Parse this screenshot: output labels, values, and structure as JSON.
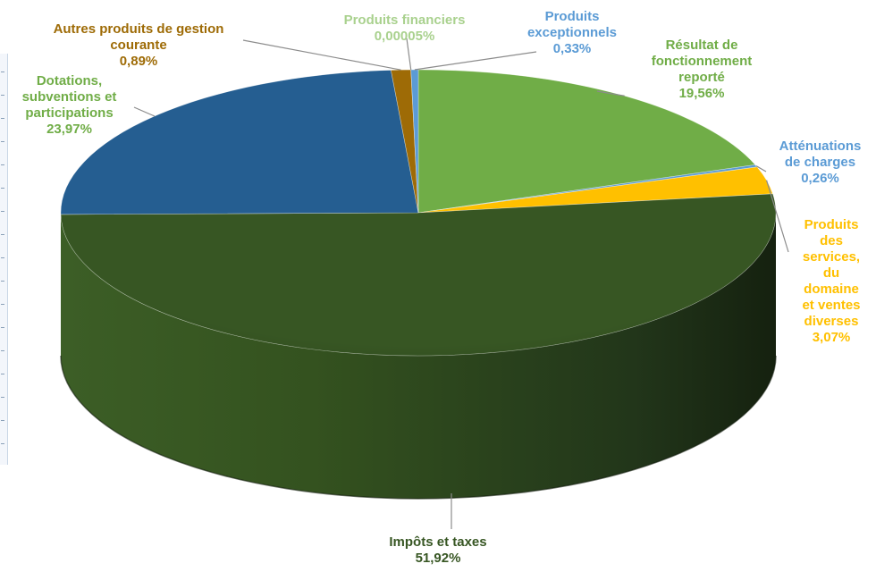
{
  "chart_data": {
    "type": "pie",
    "style": "3d",
    "slices": [
      {
        "name": "Résultat de fonctionnement reporté",
        "value": 19.56,
        "value_label": "19,56%",
        "color": "#70ad47"
      },
      {
        "name": "Atténuations de charges",
        "value": 0.26,
        "value_label": "0,26%",
        "color": "#5b9bd5"
      },
      {
        "name": "Produits des services, du domaine et ventes diverses",
        "value": 3.07,
        "value_label": "3,07%",
        "color": "#ffc000"
      },
      {
        "name": "Impôts et taxes",
        "value": 51.92,
        "value_label": "51,92%",
        "color": "#375623"
      },
      {
        "name": "Dotations, subventions et participations",
        "value": 23.97,
        "value_label": "23,97%",
        "color": "#255e91"
      },
      {
        "name": "Autres produits de gestion courante",
        "value": 0.89,
        "value_label": "0,89%",
        "color": "#9e6b06"
      },
      {
        "name": "Produits financiers",
        "value": 5e-05,
        "value_label": "0,00005%",
        "color": "#70ad47"
      },
      {
        "name": "Produits exceptionnels",
        "value": 0.33,
        "value_label": "0,33%",
        "color": "#5b9bd5"
      }
    ]
  },
  "labels": {
    "resultat": [
      "Résultat de",
      "fonctionnement",
      "reporté",
      "19,56%"
    ],
    "attenuations": [
      "Atténuations",
      "de charges",
      "0,26%"
    ],
    "produits_services": [
      "Produits",
      "des",
      "services,",
      "du",
      "domaine",
      "et ventes",
      "diverses",
      "3,07%"
    ],
    "impots": [
      "Impôts et taxes",
      "51,92%"
    ],
    "dotations": [
      "Dotations,",
      "subventions et",
      "participations",
      "23,97%"
    ],
    "autres": [
      "Autres produits de gestion",
      "courante",
      "0,89%"
    ],
    "financiers": [
      "Produits financiers",
      "0,00005%"
    ],
    "exceptionnels": [
      "Produits",
      "exceptionnels",
      "0,33%"
    ]
  },
  "label_colors": {
    "resultat": "#70ad47",
    "attenuations": "#5b9bd5",
    "produits_services": "#ffc000",
    "impots": "#375623",
    "dotations": "#70ad47",
    "autres": "#9e6b06",
    "financiers": "#a9d18e",
    "exceptionnels": "#5b9bd5"
  }
}
